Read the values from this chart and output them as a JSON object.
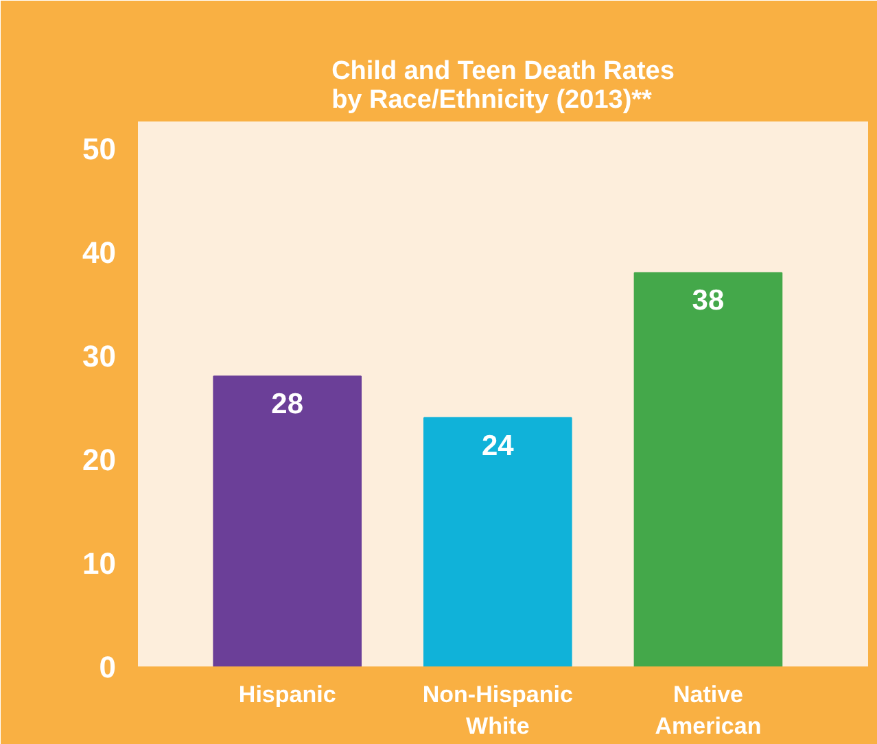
{
  "chart_data": {
    "type": "bar",
    "title": "Child and Teen Death Rates\nby Race/Ethnicity (2013)**",
    "categories": [
      "Hispanic",
      "Non-Hispanic\nWhite",
      "Native\nAmerican"
    ],
    "values": [
      28,
      24,
      38
    ],
    "colors": [
      "#6b3f98",
      "#10b2d9",
      "#44a84a"
    ],
    "ylim": [
      0,
      52.6
    ],
    "yticks": [
      0,
      10,
      20,
      30,
      40,
      50
    ],
    "grid": false,
    "data_labels": true
  }
}
